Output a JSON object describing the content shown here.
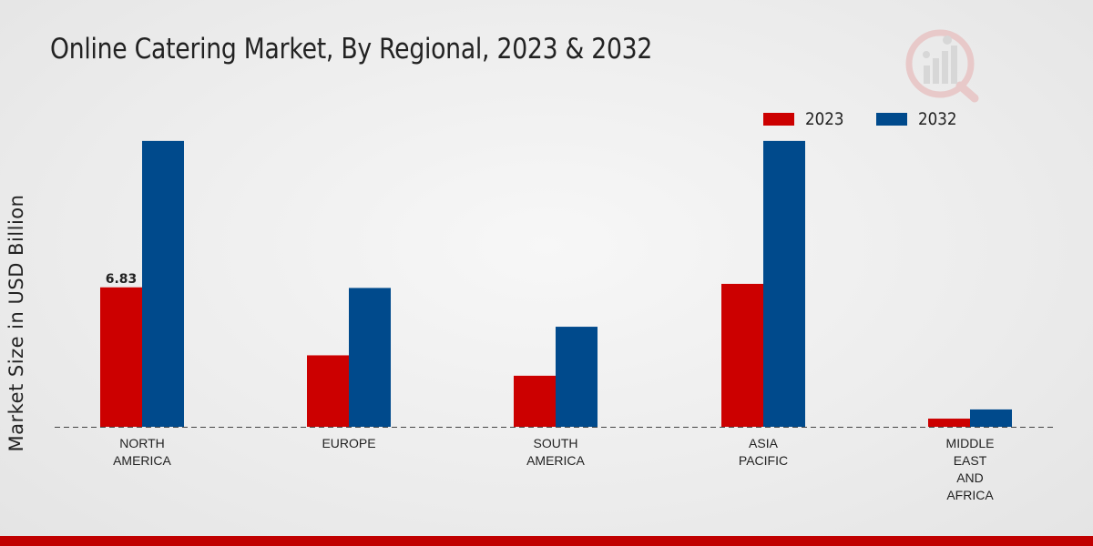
{
  "title": "Online Catering Market, By Regional, 2023 & 2032",
  "colors": {
    "series_2023": "#cc0000",
    "series_2032": "#004a8c",
    "footer": "#c00000"
  },
  "legend": [
    {
      "label": "2023",
      "color": "#cc0000"
    },
    {
      "label": "2032",
      "color": "#004a8c"
    }
  ],
  "chart_data": {
    "type": "bar",
    "title": "Online Catering Market, By Regional, 2023 & 2032",
    "ylabel": "Market Size in USD Billion",
    "xlabel": "",
    "ylim": [
      0,
      16
    ],
    "categories": [
      [
        "NORTH",
        "AMERICA"
      ],
      [
        "EUROPE"
      ],
      [
        "SOUTH",
        "AMERICA"
      ],
      [
        "ASIA",
        "PACIFIC"
      ],
      [
        "MIDDLE",
        "EAST",
        "AND",
        "AFRICA"
      ]
    ],
    "series": [
      {
        "name": "2023",
        "values": [
          6.83,
          3.5,
          2.5,
          7.0,
          0.4
        ]
      },
      {
        "name": "2032",
        "values": [
          14.0,
          6.8,
          4.9,
          14.0,
          0.85
        ]
      }
    ],
    "data_labels": [
      {
        "series": 0,
        "index": 0,
        "text": "6.83"
      }
    ],
    "grid": false,
    "legend_position": "top-right"
  }
}
